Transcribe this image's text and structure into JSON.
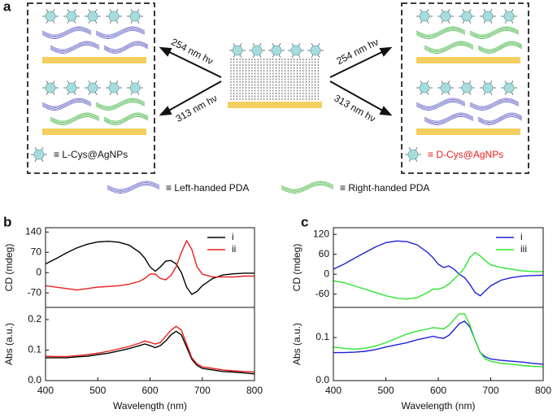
{
  "panel_labels": [
    "a",
    "b",
    "c"
  ],
  "diagram": {
    "arrows": [
      {
        "label": "254 nm hν"
      },
      {
        "label": "313 nm hν"
      },
      {
        "label": "254 nm hν"
      },
      {
        "label": "313 nm hν"
      }
    ],
    "legend": {
      "l_cys": "≡ L-Cys@AgNPs",
      "d_cys": "≡ D-Cys@AgNPs",
      "left_pda": "≡ Left-handed PDA",
      "right_pda": "≡ Right-handed PDA"
    }
  },
  "chart_data": [
    {
      "type": "line",
      "y_label": "CD (mdeg)",
      "xlim": [
        400,
        800
      ],
      "ylim": [
        -120,
        155
      ],
      "yticks": [
        -70,
        0,
        70,
        140
      ],
      "legend": "upper right",
      "x": [
        400,
        420,
        440,
        460,
        480,
        500,
        520,
        540,
        560,
        580,
        590,
        600,
        610,
        620,
        630,
        640,
        650,
        660,
        670,
        680,
        690,
        700,
        720,
        740,
        760,
        780,
        800
      ],
      "series": [
        {
          "name": "i",
          "color": "#000000",
          "values": [
            30,
            48,
            68,
            85,
            98,
            106,
            108,
            105,
            95,
            70,
            50,
            20,
            5,
            20,
            40,
            42,
            30,
            0,
            -50,
            -75,
            -65,
            -45,
            -20,
            -8,
            -4,
            -2,
            -2
          ]
        },
        {
          "name": "ii",
          "color": "#e8201e",
          "values": [
            -45,
            -50,
            -55,
            -60,
            -55,
            -50,
            -48,
            -45,
            -40,
            -30,
            -20,
            -5,
            -5,
            -20,
            -25,
            -10,
            20,
            70,
            110,
            80,
            20,
            -5,
            -15,
            -15,
            -15,
            -12,
            -12
          ]
        }
      ]
    },
    {
      "type": "line",
      "y_label": "Abs (a.u.)",
      "x_label": "Wavelength (nm)",
      "xlim": [
        400,
        800
      ],
      "xticks": [
        400,
        500,
        600,
        700,
        800
      ],
      "ylim": [
        0,
        0.24
      ],
      "yticks": [
        {
          "value": 0,
          "label": "0.0"
        },
        0.1,
        0.2
      ],
      "x": [
        400,
        420,
        440,
        460,
        480,
        500,
        520,
        540,
        560,
        580,
        590,
        600,
        610,
        620,
        630,
        640,
        650,
        660,
        670,
        680,
        690,
        700,
        720,
        740,
        760,
        780,
        800
      ],
      "series": [
        {
          "color": "#000000",
          "values": [
            0.075,
            0.075,
            0.075,
            0.078,
            0.08,
            0.085,
            0.09,
            0.097,
            0.105,
            0.115,
            0.12,
            0.115,
            0.108,
            0.115,
            0.13,
            0.15,
            0.162,
            0.15,
            0.11,
            0.07,
            0.05,
            0.04,
            0.035,
            0.03,
            0.028,
            0.025,
            0.022
          ]
        },
        {
          "color": "#e8201e",
          "values": [
            0.08,
            0.079,
            0.079,
            0.082,
            0.085,
            0.09,
            0.096,
            0.104,
            0.112,
            0.123,
            0.13,
            0.125,
            0.12,
            0.125,
            0.145,
            0.165,
            0.178,
            0.165,
            0.12,
            0.075,
            0.055,
            0.045,
            0.04,
            0.035,
            0.032,
            0.03,
            0.028
          ]
        }
      ]
    },
    {
      "type": "line",
      "y_label": "CD (mdeg)",
      "xlim": [
        400,
        800
      ],
      "ylim": [
        -100,
        140
      ],
      "yticks": [
        -60,
        0,
        60,
        120
      ],
      "legend": "upper right",
      "x": [
        400,
        420,
        440,
        460,
        480,
        500,
        520,
        540,
        560,
        580,
        590,
        600,
        610,
        620,
        630,
        640,
        650,
        660,
        670,
        680,
        690,
        700,
        720,
        740,
        760,
        780,
        800
      ],
      "series": [
        {
          "name": "i",
          "color": "#1f1fd6",
          "values": [
            15,
            30,
            48,
            65,
            82,
            95,
            100,
            98,
            88,
            65,
            50,
            30,
            20,
            25,
            15,
            0,
            -10,
            -30,
            -55,
            -65,
            -50,
            -35,
            -18,
            -10,
            -6,
            -4,
            -3
          ]
        },
        {
          "name": "iii",
          "color": "#2ee62e",
          "values": [
            -20,
            -25,
            -35,
            -45,
            -55,
            -65,
            -72,
            -75,
            -70,
            -55,
            -45,
            -45,
            -40,
            -30,
            -15,
            0,
            20,
            50,
            65,
            55,
            40,
            28,
            20,
            15,
            10,
            8,
            8
          ]
        }
      ]
    },
    {
      "type": "line",
      "y_label": "Abs (a.u.)",
      "x_label": "Wavelength (nm)",
      "xlim": [
        400,
        800
      ],
      "xticks": [
        400,
        500,
        600,
        700,
        800
      ],
      "ylim": [
        0,
        0.17
      ],
      "yticks": [
        {
          "value": 0,
          "label": "0.0"
        },
        0.1
      ],
      "x": [
        400,
        420,
        440,
        460,
        480,
        500,
        520,
        540,
        560,
        580,
        590,
        600,
        610,
        620,
        630,
        640,
        650,
        660,
        670,
        680,
        690,
        700,
        720,
        740,
        760,
        780,
        800
      ],
      "series": [
        {
          "color": "#1f1fd6",
          "values": [
            0.065,
            0.065,
            0.066,
            0.068,
            0.072,
            0.078,
            0.083,
            0.088,
            0.095,
            0.1,
            0.103,
            0.1,
            0.098,
            0.105,
            0.118,
            0.132,
            0.138,
            0.125,
            0.095,
            0.065,
            0.055,
            0.05,
            0.047,
            0.045,
            0.043,
            0.04,
            0.038
          ]
        },
        {
          "color": "#2ee62e",
          "values": [
            0.078,
            0.075,
            0.073,
            0.075,
            0.08,
            0.088,
            0.098,
            0.108,
            0.115,
            0.12,
            0.123,
            0.122,
            0.12,
            0.128,
            0.142,
            0.155,
            0.155,
            0.13,
            0.095,
            0.065,
            0.05,
            0.045,
            0.04,
            0.038,
            0.035,
            0.033,
            0.032
          ]
        }
      ]
    }
  ]
}
